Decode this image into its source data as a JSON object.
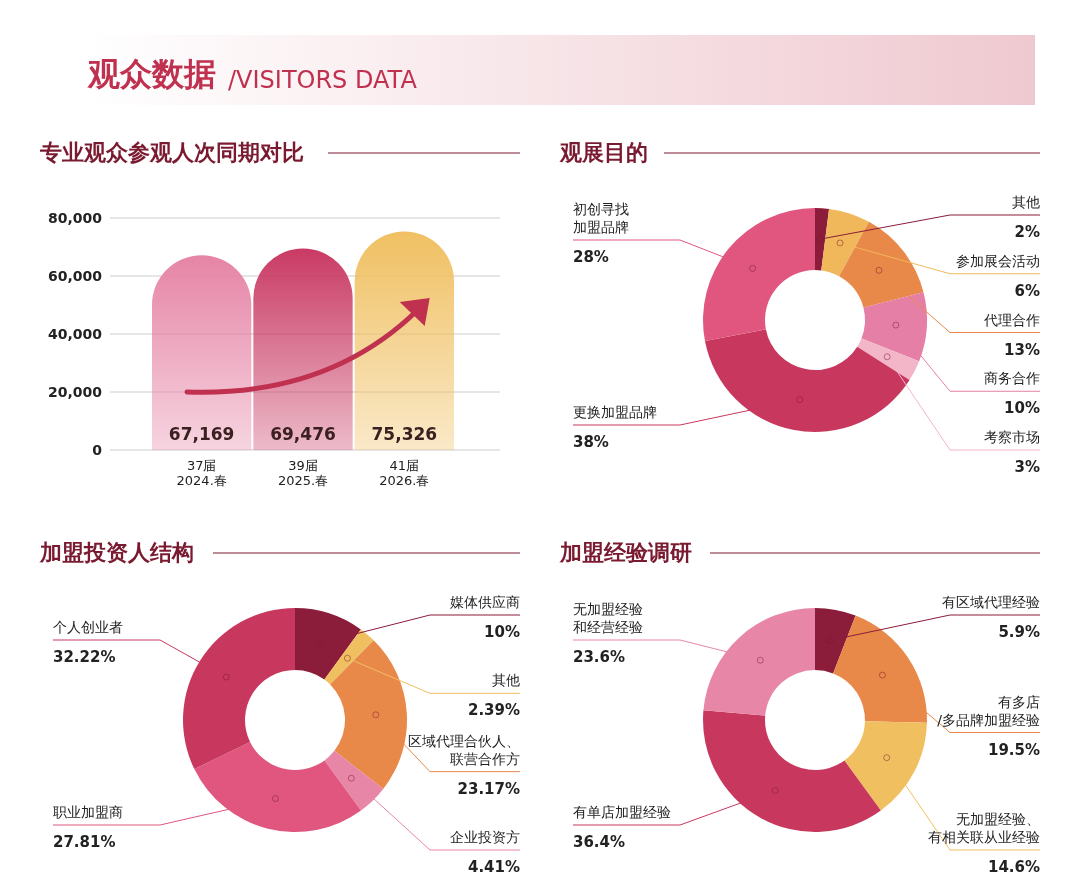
{
  "chart_data": [
    {
      "type": "bar",
      "title": "专业观众参观人次同期对比",
      "annotations": [
        "观众数据",
        "/VISITORS DATA"
      ],
      "categories": [
        "37届\n2024.春",
        "39届\n2025.春",
        "41届\n2026.春"
      ],
      "values": [
        67169,
        69476,
        75326
      ],
      "value_labels": [
        "67,169",
        "69,476",
        "75,326"
      ],
      "colors": [
        "#e684a6",
        "#c93a64",
        "#f0c062"
      ],
      "ylim": [
        0,
        80000
      ],
      "yticks": [
        {
          "value": 0,
          "label": "0"
        },
        {
          "value": 20000,
          "label": "20,000"
        },
        {
          "value": 40000,
          "label": "40,000"
        },
        {
          "value": 60000,
          "label": "60,000"
        },
        {
          "value": 80000,
          "label": "80,000"
        }
      ],
      "grid": "y"
    },
    {
      "type": "donut",
      "title": "观展目的",
      "categories": [
        "其他",
        "参加展会活动",
        "代理合作",
        "商务合作",
        "考察市场",
        "更换加盟品牌",
        "初创寻找加盟品牌"
      ],
      "values": [
        2,
        6,
        13,
        10,
        3,
        38,
        28
      ],
      "value_labels": [
        "2%",
        "6%",
        "13%",
        "10%",
        "3%",
        "38%",
        "28%"
      ],
      "colors": [
        "#8b1c3a",
        "#f0b85a",
        "#e8894a",
        "#e57fa5",
        "#f3b6c8",
        "#c8385e",
        "#e0567f"
      ]
    },
    {
      "type": "donut",
      "title": "加盟投资人结构",
      "categories": [
        "媒体供应商",
        "其他",
        "区域代理合伙人、联营合作方",
        "企业投资方",
        "职业加盟商",
        "个人创业者"
      ],
      "values": [
        10,
        2.39,
        23.17,
        4.41,
        27.81,
        32.22
      ],
      "value_labels": [
        "10%",
        "2.39%",
        "23.17%",
        "4.41%",
        "27.81%",
        "32.22%"
      ],
      "colors": [
        "#8b1c3a",
        "#f0c060",
        "#e8894a",
        "#e886a8",
        "#e0567f",
        "#c8385e"
      ]
    },
    {
      "type": "donut",
      "title": "加盟经验调研",
      "categories": [
        "有区域代理经验",
        "有多店/多品牌加盟经验",
        "无加盟经验、有相关联从业经验",
        "有单店加盟经验",
        "无加盟经验和经营经验"
      ],
      "values": [
        5.9,
        19.5,
        14.6,
        36.4,
        23.6
      ],
      "value_labels": [
        "5.9%",
        "19.5%",
        "14.6%",
        "36.4%",
        "23.6%"
      ],
      "colors": [
        "#8b1c3a",
        "#e8894a",
        "#f0c060",
        "#c8385e",
        "#e886a8"
      ]
    }
  ]
}
